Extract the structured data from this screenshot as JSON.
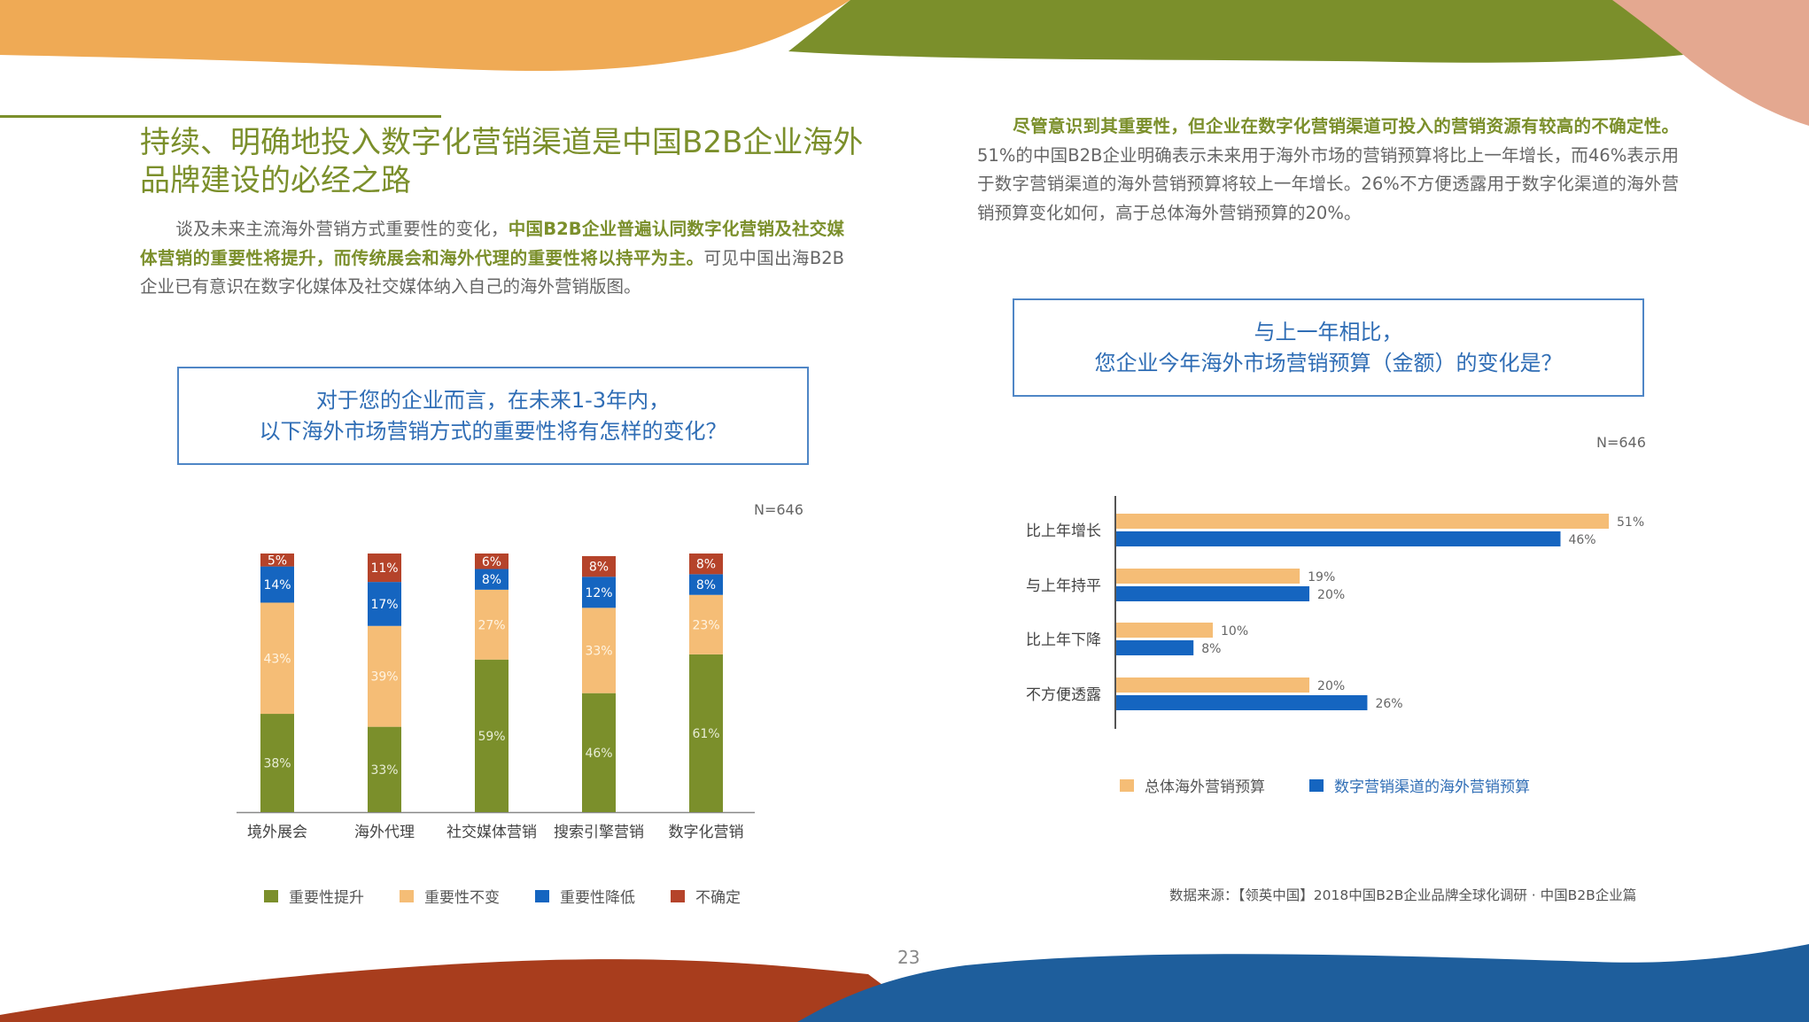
{
  "page_number": "23",
  "section_title": "持续、明确地投入数字化营销渠道是中国B2B企业海外品牌建设的必经之路",
  "left_para": {
    "lead": "谈及未来主流海外营销方式重要性的变化，",
    "bold": "中国B2B企业普遍认同数字化营销及社交媒体营销的重要性将提升，而传统展会和海外代理的重要性将以持平为主。",
    "rest": "可见中国出海B2B企业已有意识在数字化媒体及社交媒体纳入自己的海外营销版图。"
  },
  "right_para": {
    "bold": "尽管意识到其重要性，但企业在数字化营销渠道可投入的营销资源有较高的不确定性。",
    "rest": "51%的中国B2B企业明确表示未来用于海外市场的营销预算将比上一年增长，而46%表示用于数字营销渠道的海外营销预算将较上一年增长。26%不方便透露用于数字化渠道的海外营销预算变化如何，高于总体海外营销预算的20%。"
  },
  "left_question": {
    "line1": "对于您的企业而言，在未来1-3年内，",
    "line2": "以下海外市场营销方式的重要性将有怎样的变化？"
  },
  "right_question": {
    "line1": "与上一年相比，",
    "line2": "您企业今年海外市场营销预算（金额）的变化是？"
  },
  "colors": {
    "green": "#7b8f2b",
    "orange": "#f5bd76",
    "blue": "#1565c0",
    "red": "#b5432a",
    "box_border": "#4f86c6",
    "box_text": "#2f6db5"
  },
  "source": "数据来源：【领英中国】2018中国B2B企业品牌全球化调研 · 中国B2B企业篇",
  "chart_data": [
    {
      "type": "bar",
      "stacked": true,
      "n_label": "N=646",
      "categories": [
        "境外展会",
        "海外代理",
        "社交媒体营销",
        "搜索引擎营销",
        "数字化营销"
      ],
      "series": [
        {
          "name": "重要性提升",
          "color": "#7b8f2b",
          "values": [
            38,
            33,
            59,
            46,
            61
          ]
        },
        {
          "name": "重要性不变",
          "color": "#f5bd76",
          "values": [
            43,
            39,
            27,
            33,
            23
          ]
        },
        {
          "name": "重要性降低",
          "color": "#1565c0",
          "values": [
            14,
            17,
            8,
            12,
            8
          ]
        },
        {
          "name": "不确定",
          "color": "#b5432a",
          "values": [
            5,
            11,
            6,
            8,
            8
          ]
        }
      ],
      "ylim": [
        0,
        100
      ],
      "value_suffix": "%",
      "legend_position": "bottom"
    },
    {
      "type": "bar",
      "orientation": "horizontal",
      "n_label": "N=646",
      "categories": [
        "比上年增长",
        "与上年持平",
        "比上年下降",
        "不方便透露"
      ],
      "series": [
        {
          "name": "总体海外营销预算",
          "color": "#f5bd76",
          "values": [
            51,
            19,
            10,
            20
          ]
        },
        {
          "name": "数字营销渠道的海外营销预算",
          "color": "#1565c0",
          "values": [
            46,
            20,
            8,
            26
          ]
        }
      ],
      "xlim": [
        0,
        51
      ],
      "value_suffix": "%",
      "legend_position": "bottom"
    }
  ]
}
